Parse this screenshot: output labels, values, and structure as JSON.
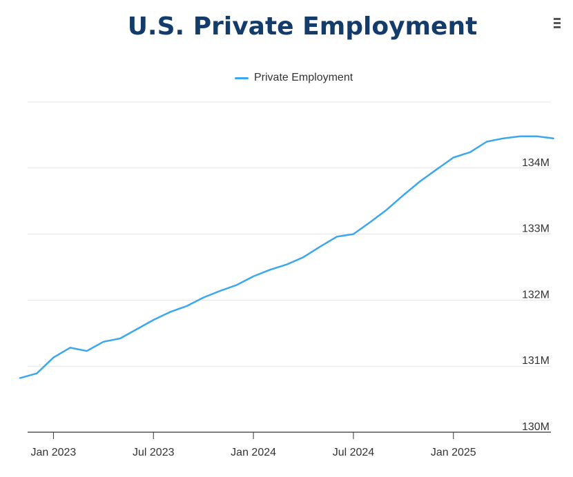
{
  "title": "U.S. Private Employment",
  "menu_icon": "hamburger-menu-icon",
  "colors": {
    "series": "#3aa7f0",
    "title": "#143c6b",
    "grid": "#e3e3e3",
    "axis": "#333333"
  },
  "chart_data": {
    "type": "line",
    "title": "U.S. Private Employment",
    "xlabel": "",
    "ylabel": "",
    "ylim": [
      130000000,
      135000000
    ],
    "y_ticks": [
      {
        "value": 130000000,
        "label": "130M"
      },
      {
        "value": 131000000,
        "label": "131M"
      },
      {
        "value": 132000000,
        "label": "132M"
      },
      {
        "value": 133000000,
        "label": "133M"
      },
      {
        "value": 134000000,
        "label": "134M"
      }
    ],
    "x_range": [
      "2022-11",
      "2025-07"
    ],
    "x_ticks": [
      {
        "value": "2023-01",
        "label": "Jan 2023"
      },
      {
        "value": "2023-07",
        "label": "Jul 2023"
      },
      {
        "value": "2024-01",
        "label": "Jan 2024"
      },
      {
        "value": "2024-07",
        "label": "Jul 2024"
      },
      {
        "value": "2025-01",
        "label": "Jan 2025"
      }
    ],
    "legend": {
      "position": "top-center",
      "entries": [
        "Private Employment"
      ]
    },
    "grid": true,
    "series": [
      {
        "name": "Private Employment",
        "x": [
          "2022-11",
          "2022-12",
          "2023-01",
          "2023-02",
          "2023-03",
          "2023-04",
          "2023-05",
          "2023-06",
          "2023-07",
          "2023-08",
          "2023-09",
          "2023-10",
          "2023-11",
          "2023-12",
          "2024-01",
          "2024-02",
          "2024-03",
          "2024-04",
          "2024-05",
          "2024-06",
          "2024-07",
          "2024-08",
          "2024-09",
          "2024-10",
          "2024-11",
          "2024-12",
          "2025-01",
          "2025-02",
          "2025-03",
          "2025-04",
          "2025-05",
          "2025-06",
          "2025-07"
        ],
        "values": [
          130820000,
          130890000,
          131130000,
          131280000,
          131230000,
          131370000,
          131420000,
          131560000,
          131700000,
          131820000,
          131910000,
          132040000,
          132140000,
          132230000,
          132360000,
          132460000,
          132540000,
          132650000,
          132810000,
          132960000,
          133000000,
          133180000,
          133370000,
          133590000,
          133800000,
          133980000,
          134160000,
          134240000,
          134400000,
          134450000,
          134480000,
          134480000,
          134450000
        ]
      }
    ]
  }
}
